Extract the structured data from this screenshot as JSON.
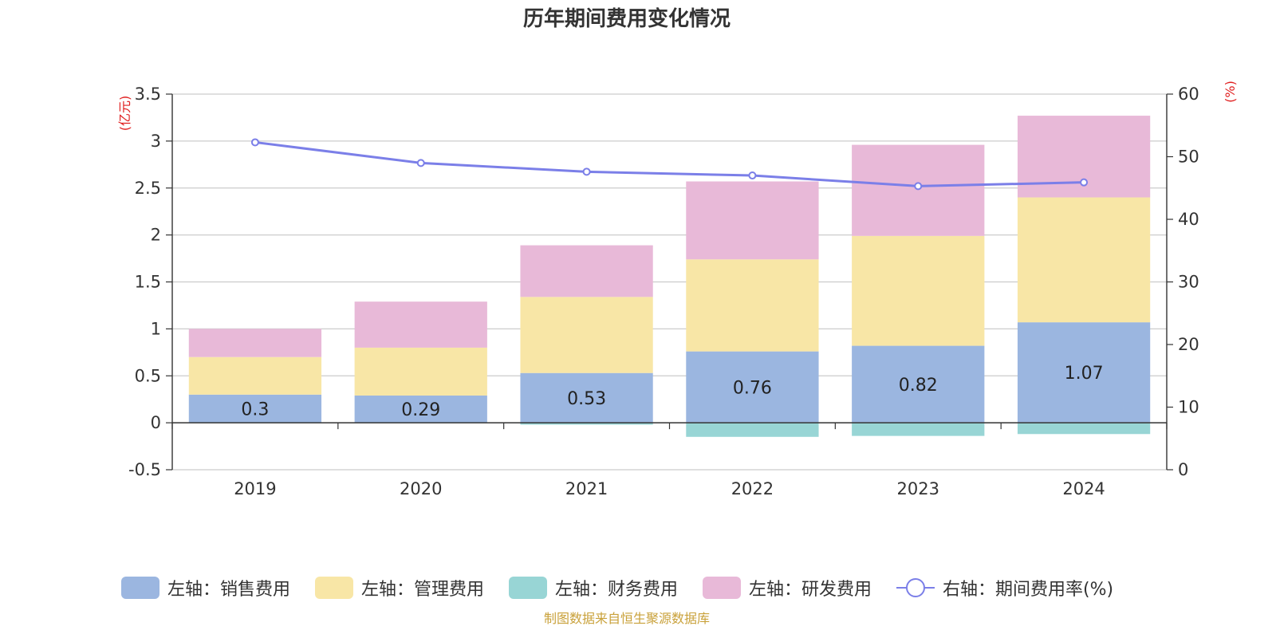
{
  "chart_data": {
    "type": "bar",
    "title": "历年期间费用变化情况",
    "categories": [
      "2019",
      "2020",
      "2021",
      "2022",
      "2023",
      "2024"
    ],
    "left_axis": {
      "unit": "(亿元)",
      "ylim": [
        -0.5,
        3.5
      ],
      "ticks": [
        "3.5",
        "3",
        "2.5",
        "2",
        "1.5",
        "1",
        "0.5",
        "0",
        "-0.5"
      ],
      "tick_values": [
        3.5,
        3,
        2.5,
        2,
        1.5,
        1,
        0.5,
        0,
        -0.5
      ]
    },
    "right_axis": {
      "unit": "(%)",
      "ylim": [
        0,
        60
      ],
      "ticks": [
        "60",
        "50",
        "40",
        "30",
        "20",
        "10",
        "0"
      ],
      "tick_values": [
        60,
        50,
        40,
        30,
        20,
        10,
        0
      ]
    },
    "bar_series": [
      {
        "name": "左轴：销售费用",
        "color": "#9bb6e0",
        "values": [
          0.3,
          0.29,
          0.53,
          0.76,
          0.82,
          1.07
        ],
        "labels": [
          "0.3",
          "0.29",
          "0.53",
          "0.76",
          "0.82",
          "1.07"
        ]
      },
      {
        "name": "左轴：管理费用",
        "color": "#f8e6a6",
        "values": [
          0.4,
          0.51,
          0.81,
          0.98,
          1.17,
          1.33
        ]
      },
      {
        "name": "左轴：财务费用",
        "color": "#98d5d5",
        "values": [
          0.0,
          0.0,
          -0.02,
          -0.15,
          -0.14,
          -0.12
        ]
      },
      {
        "name": "左轴：研发费用",
        "color": "#e8b9d8",
        "values": [
          0.3,
          0.49,
          0.55,
          0.83,
          0.97,
          0.87
        ]
      }
    ],
    "line_series": {
      "name": "右轴：期间费用率(%)",
      "color": "#7b7fe8",
      "values": [
        52.3,
        49.0,
        47.6,
        47.0,
        45.3,
        45.9
      ]
    },
    "grid": true,
    "legend_position": "bottom",
    "source": "制图数据来自恒生聚源数据库"
  }
}
